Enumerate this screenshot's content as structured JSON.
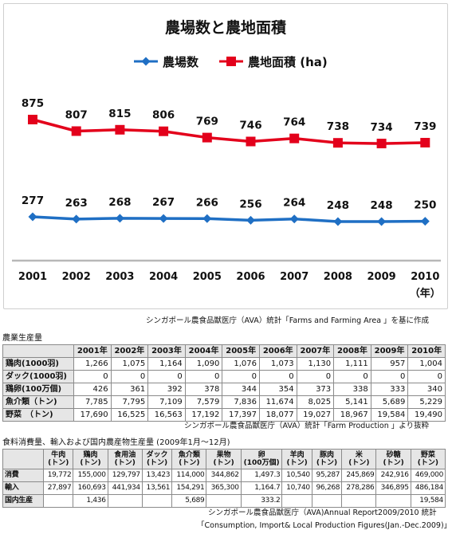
{
  "chart_data": {
    "type": "line",
    "title": "農場数と農地面積",
    "x": [
      "2001",
      "2002",
      "2003",
      "2004",
      "2005",
      "2006",
      "2007",
      "2008",
      "2009",
      "2010"
    ],
    "x_unit": "（年）",
    "series": [
      {
        "name": "農場数",
        "values": [
          277,
          263,
          268,
          267,
          266,
          256,
          264,
          248,
          248,
          250
        ],
        "color": "#1f6fc4",
        "marker": "diamond"
      },
      {
        "name": "農地面積 (ha)",
        "values": [
          875,
          807,
          815,
          806,
          769,
          746,
          764,
          738,
          734,
          739
        ],
        "color": "#e3001b",
        "marker": "square"
      }
    ],
    "legend_position": "top",
    "grid": false
  },
  "chart_source": "シンガポール農食品獣医庁（AVA）統計「Farms and Farming Area 」を基に作成",
  "agri": {
    "title": "農業生産量",
    "columns": [
      "",
      "2001年",
      "2002年",
      "2003年",
      "2004年",
      "2005年",
      "2006年",
      "2007年",
      "2008年",
      "2009年",
      "2010年"
    ],
    "rows": [
      {
        "label": "鶏肉(1000羽)",
        "values": [
          "1,266",
          "1,075",
          "1,164",
          "1,090",
          "1,076",
          "1,073",
          "1,130",
          "1,111",
          "957",
          "1,004"
        ]
      },
      {
        "label": "ダック(1000羽)",
        "values": [
          "0",
          "0",
          "0",
          "0",
          "0",
          "0",
          "0",
          "0",
          "0",
          "0"
        ]
      },
      {
        "label": "鶏卵(100万個)",
        "values": [
          "426",
          "361",
          "392",
          "378",
          "344",
          "354",
          "373",
          "338",
          "333",
          "340"
        ]
      },
      {
        "label": "魚介類（トン)",
        "values": [
          "7,785",
          "7,795",
          "7,109",
          "7,579",
          "7,836",
          "11,674",
          "8,025",
          "5,141",
          "5,689",
          "5,229"
        ]
      },
      {
        "label": "野菜　（トン)",
        "values": [
          "17,690",
          "16,525",
          "16,563",
          "17,192",
          "17,397",
          "18,077",
          "19,027",
          "18,967",
          "19,584",
          "19,490"
        ]
      }
    ],
    "source": "シンガポール農食品獣医庁（AVA）統計「Farm Production 」より抜粋"
  },
  "food": {
    "title": "食料消費量、輸入および国内農産物生産量 (2009年1月〜12月)",
    "columns": [
      [
        "",
        ""
      ],
      [
        "牛肉",
        "(トン)"
      ],
      [
        "鶏肉",
        "(トン)"
      ],
      [
        "食用油",
        "(トン)"
      ],
      [
        "ダック",
        "(トン)"
      ],
      [
        "魚介類",
        "(トン)"
      ],
      [
        "果物",
        "(トン)"
      ],
      [
        "卵",
        "(100万個)"
      ],
      [
        "羊肉",
        "(トン)"
      ],
      [
        "豚肉",
        "(トン)"
      ],
      [
        "米",
        "(トン)"
      ],
      [
        "砂糖",
        "(トン)"
      ],
      [
        "野菜",
        "(トン)"
      ]
    ],
    "rows": [
      {
        "label": "消費",
        "values": [
          "19,772",
          "155,000",
          "129,797",
          "13,423",
          "114,000",
          "344,862",
          "1,497.3",
          "10,540",
          "95,287",
          "245,869",
          "242,916",
          "469,000"
        ]
      },
      {
        "label": "輸入",
        "values": [
          "27,897",
          "160,693",
          "441,934",
          "13,561",
          "154,291",
          "365,300",
          "1,164.7",
          "10,740",
          "96,268",
          "278,286",
          "346,895",
          "486,184"
        ]
      },
      {
        "label": "国内生産",
        "values": [
          "",
          "1,436",
          "",
          "",
          "5,689",
          "",
          "333.2",
          "",
          "",
          "",
          "",
          "19,584"
        ]
      }
    ],
    "source_line1": "シンガポール農食品獣医庁（AVA)Annual Report2009/2010 統計",
    "source_line2": "「Consumption, Import& Local Production Figures(Jan.-Dec.2009)」"
  }
}
